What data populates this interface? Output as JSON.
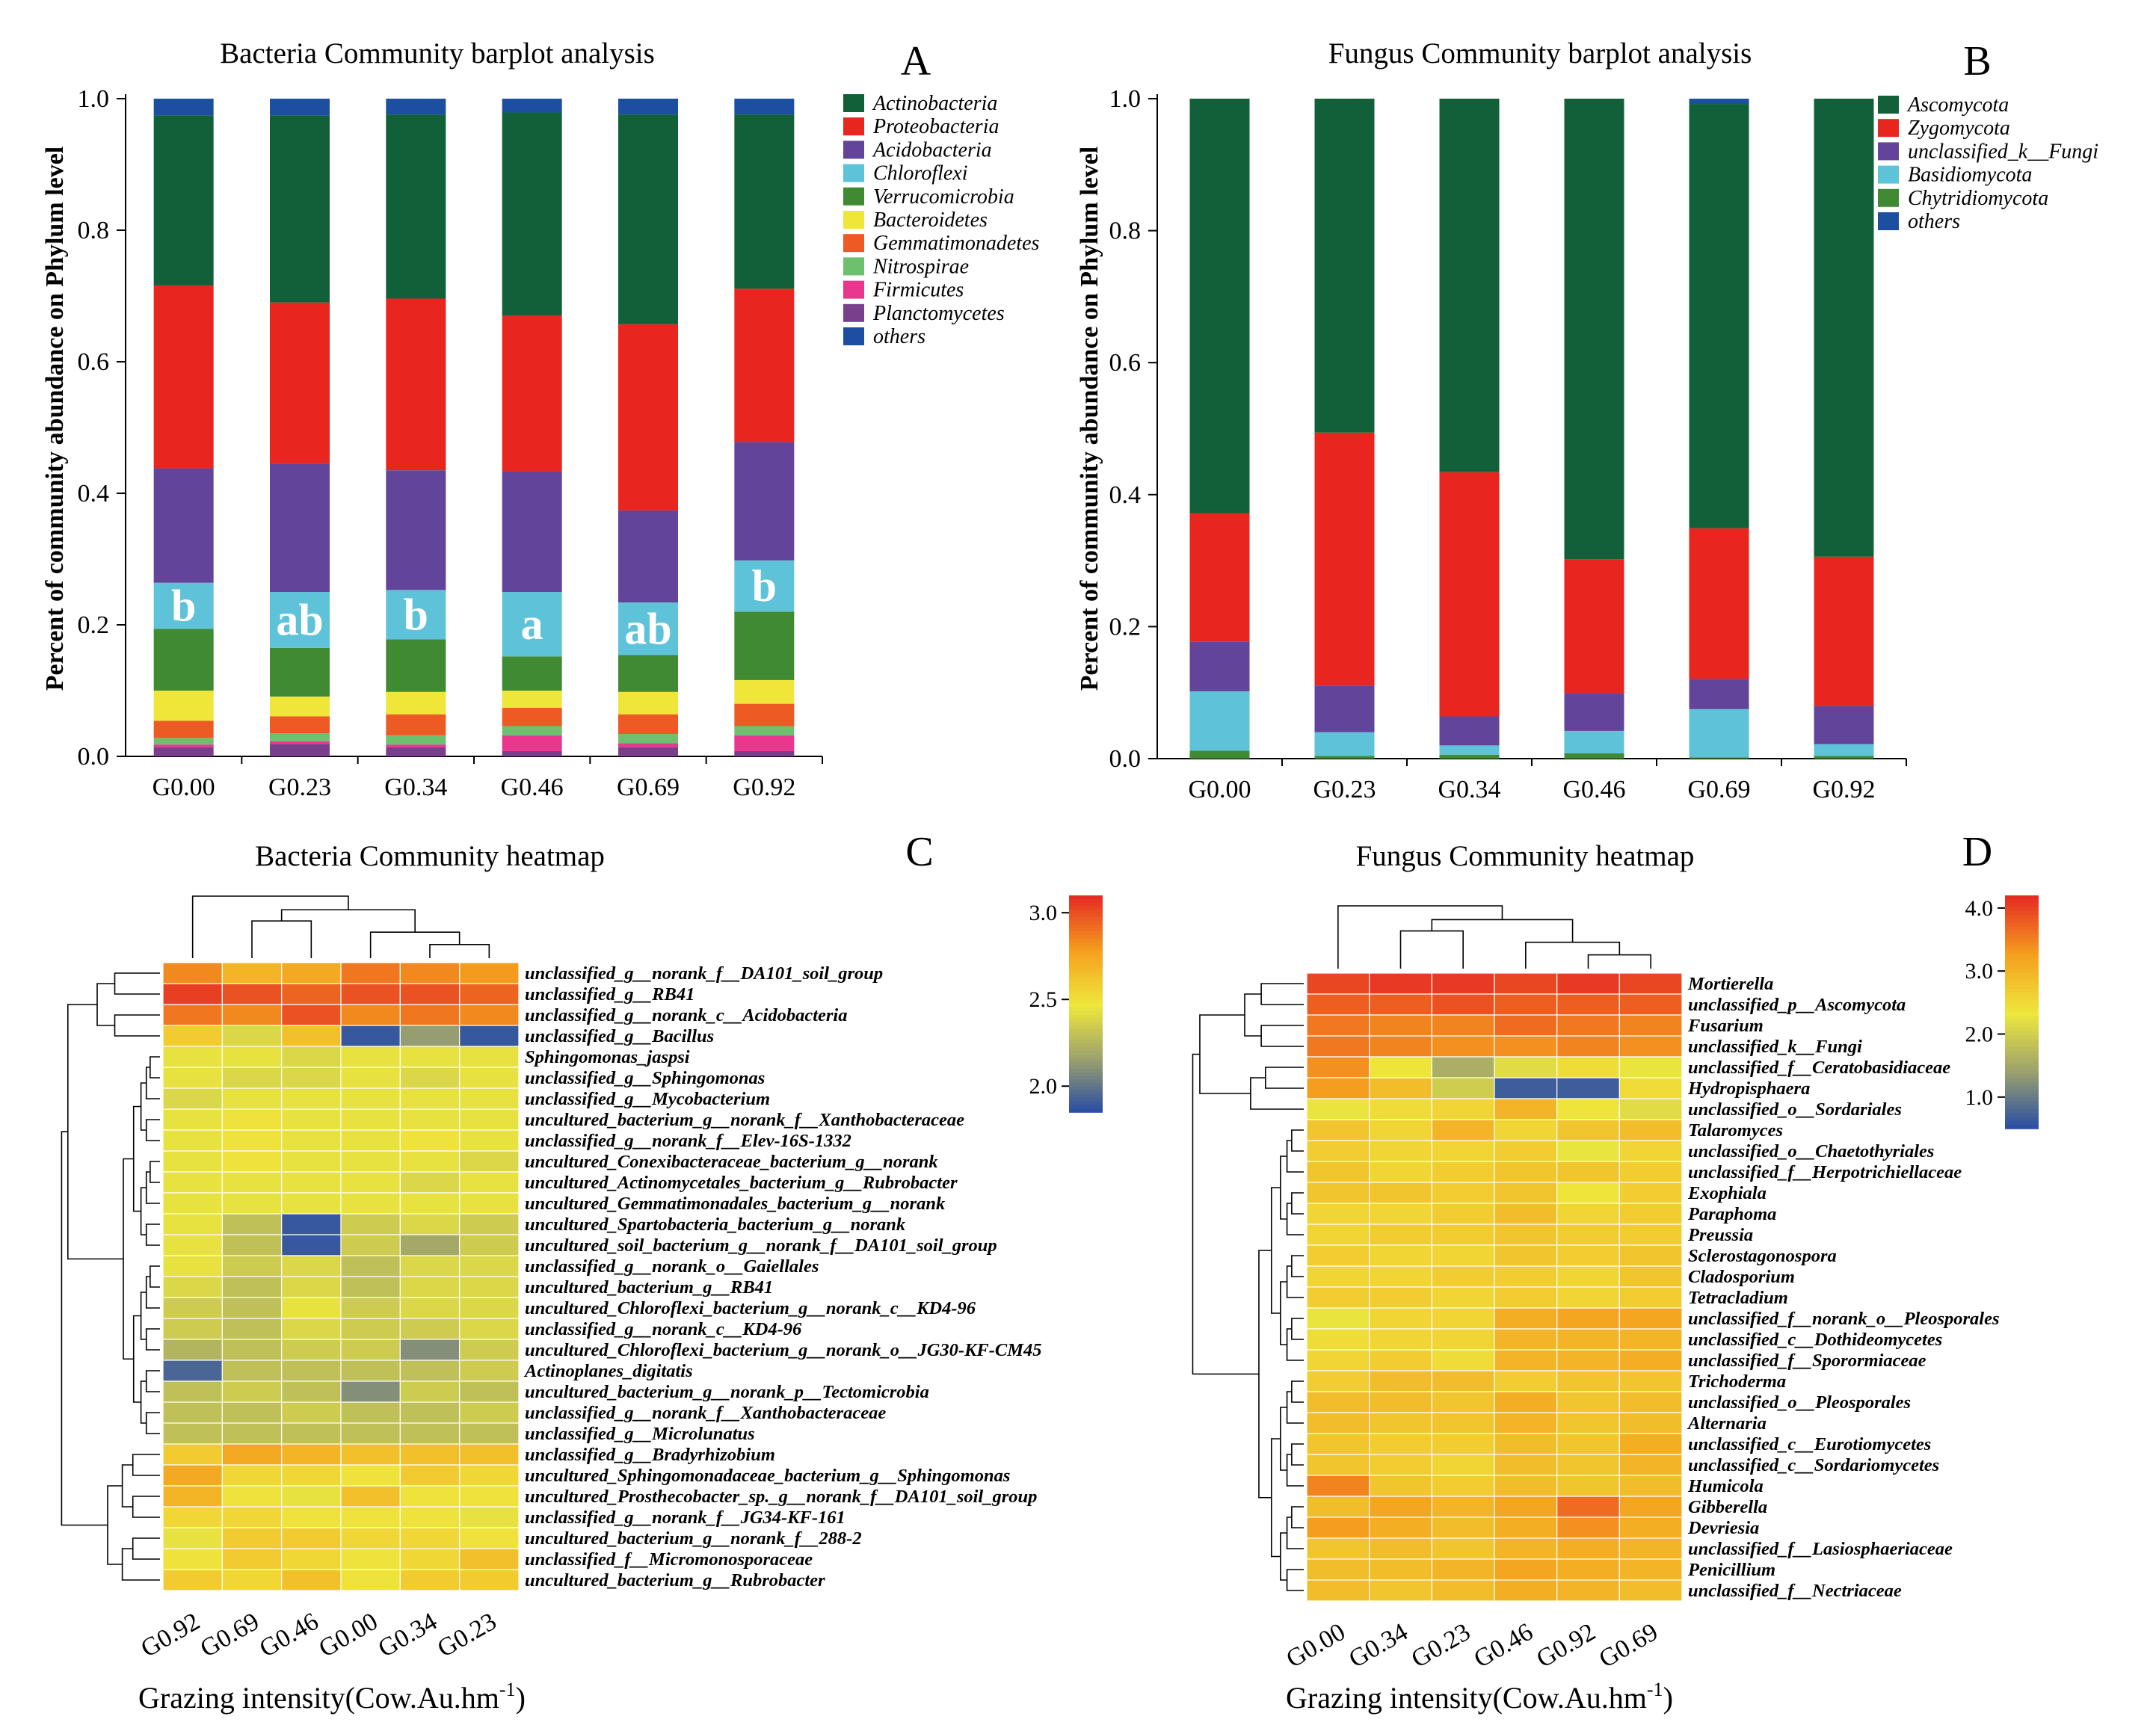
{
  "chart_data": [
    {
      "panel": "A",
      "type": "bar",
      "stacked": true,
      "title": "Bacteria Community barplot analysis",
      "ylabel": "Percent of community abundance on Phylum level",
      "xlabel": "",
      "ylim": [
        0,
        1.0
      ],
      "yticks": [
        "0.0",
        "0.2",
        "0.4",
        "0.6",
        "0.8",
        "1.0"
      ],
      "categories": [
        "G0.00",
        "G0.23",
        "G0.34",
        "G0.46",
        "G0.69",
        "G0.92"
      ],
      "significance_labels": [
        "b",
        "ab",
        "b",
        "a",
        "ab",
        "b"
      ],
      "series": [
        {
          "name": "Planctomycetes",
          "color": "#7a3f8c",
          "values": [
            0.014,
            0.019,
            0.014,
            0.008,
            0.014,
            0.008
          ]
        },
        {
          "name": "Firmicutes",
          "color": "#e8378d",
          "values": [
            0.004,
            0.004,
            0.004,
            0.024,
            0.006,
            0.024
          ]
        },
        {
          "name": "Nitrospirae",
          "color": "#6cc06e",
          "values": [
            0.01,
            0.012,
            0.014,
            0.014,
            0.014,
            0.014
          ]
        },
        {
          "name": "Gemmatimonadetes",
          "color": "#ee5a24",
          "values": [
            0.026,
            0.026,
            0.032,
            0.028,
            0.03,
            0.034
          ]
        },
        {
          "name": "Bacteroidetes",
          "color": "#f0e63a",
          "values": [
            0.046,
            0.03,
            0.034,
            0.026,
            0.034,
            0.036
          ]
        },
        {
          "name": "Verrucomicrobia",
          "color": "#3f8a33",
          "values": [
            0.094,
            0.074,
            0.08,
            0.052,
            0.056,
            0.104
          ]
        },
        {
          "name": "Chloroflexi",
          "color": "#5ec3d9",
          "values": [
            0.07,
            0.085,
            0.075,
            0.098,
            0.08,
            0.078
          ]
        },
        {
          "name": "Acidobacteria",
          "color": "#62449a",
          "values": [
            0.174,
            0.195,
            0.182,
            0.183,
            0.14,
            0.18
          ]
        },
        {
          "name": "Proteobacteria",
          "color": "#e8251e",
          "values": [
            0.278,
            0.245,
            0.261,
            0.237,
            0.283,
            0.233
          ]
        },
        {
          "name": "Actinobacteria",
          "color": "#12603a",
          "values": [
            0.258,
            0.284,
            0.28,
            0.309,
            0.319,
            0.265
          ]
        },
        {
          "name": "others",
          "color": "#1d4fa0",
          "values": [
            0.026,
            0.026,
            0.024,
            0.021,
            0.024,
            0.024
          ]
        }
      ],
      "legend": [
        "Actinobacteria",
        "Proteobacteria",
        "Acidobacteria",
        "Chloroflexi",
        "Verrucomicrobia",
        "Bacteroidetes",
        "Gemmatimonadetes",
        "Nitrospirae",
        "Firmicutes",
        "Planctomycetes",
        "others"
      ],
      "letter": "A"
    },
    {
      "panel": "B",
      "type": "bar",
      "stacked": true,
      "title": "Fungus Community barplot analysis",
      "ylabel": "Percent of community abundance on Phylum level",
      "xlabel": "",
      "ylim": [
        0,
        1.0
      ],
      "yticks": [
        "0.0",
        "0.2",
        "0.4",
        "0.6",
        "0.8",
        "1.0"
      ],
      "categories": [
        "G0.00",
        "G0.23",
        "G0.34",
        "G0.46",
        "G0.69",
        "G0.92"
      ],
      "series": [
        {
          "name": "Chytridiomycota",
          "color": "#3f8a33",
          "values": [
            0.012,
            0.004,
            0.006,
            0.008,
            0.002,
            0.004
          ]
        },
        {
          "name": "Basidiomycota",
          "color": "#5ec3d9",
          "values": [
            0.09,
            0.036,
            0.014,
            0.034,
            0.073,
            0.018
          ]
        },
        {
          "name": "unclassified_k__Fungi",
          "color": "#62449a",
          "values": [
            0.075,
            0.07,
            0.044,
            0.057,
            0.046,
            0.058
          ]
        },
        {
          "name": "Zygomycota",
          "color": "#e8251e",
          "values": [
            0.195,
            0.384,
            0.37,
            0.203,
            0.228,
            0.226
          ]
        },
        {
          "name": "Ascomycota",
          "color": "#12603a",
          "values": [
            0.628,
            0.506,
            0.566,
            0.698,
            0.643,
            0.694
          ]
        },
        {
          "name": "others",
          "color": "#1d4fa0",
          "values": [
            0.0,
            0.0,
            0.0,
            0.0,
            0.008,
            0.0
          ]
        }
      ],
      "legend": [
        "Ascomycota",
        "Zygomycota",
        "unclassified_k__Fungi",
        "Basidiomycota",
        "Chytridiomycota",
        "others"
      ],
      "letter": "B"
    },
    {
      "panel": "C",
      "type": "heatmap",
      "title": "Bacteria Community heatmap",
      "xlabel": "Grazing intensity(Cow.Au.hm",
      "xlabel_sup": "-1",
      "xlabel_end": ")",
      "columns": [
        "G0.92",
        "G0.69",
        "G0.46",
        "G0.00",
        "G0.34",
        "G0.23"
      ],
      "colorbar": {
        "min": 1.85,
        "max": 3.1,
        "ticks": [
          "2.0",
          "2.5",
          "3.0"
        ],
        "tick_values": [
          2.0,
          2.5,
          3.0
        ]
      },
      "rows": [
        {
          "name": "unclassified_g__norank_f__DA101_soil_group",
          "values": [
            2.85,
            2.7,
            2.75,
            2.9,
            2.85,
            2.8
          ]
        },
        {
          "name": "unclassified_g__RB41",
          "values": [
            3.05,
            3.0,
            2.95,
            3.0,
            3.0,
            2.95
          ]
        },
        {
          "name": "unclassified_g__norank_c__Acidobacteria",
          "values": [
            2.9,
            2.85,
            3.0,
            2.85,
            2.9,
            2.85
          ]
        },
        {
          "name": "unclassified_g__Bacillus",
          "values": [
            2.6,
            2.4,
            2.65,
            1.9,
            2.15,
            1.9
          ]
        },
        {
          "name": "Sphingomonas_jaspsi",
          "values": [
            2.45,
            2.45,
            2.4,
            2.45,
            2.45,
            2.45
          ]
        },
        {
          "name": "unclassified_g__Sphingomonas",
          "values": [
            2.45,
            2.4,
            2.4,
            2.45,
            2.4,
            2.45
          ]
        },
        {
          "name": "unclassified_g__Mycobacterium",
          "values": [
            2.4,
            2.45,
            2.45,
            2.45,
            2.45,
            2.45
          ]
        },
        {
          "name": "uncultured_bacterium_g__norank_f__Xanthobacteraceae",
          "values": [
            2.45,
            2.5,
            2.45,
            2.45,
            2.45,
            2.45
          ]
        },
        {
          "name": "unclassified_g__norank_f__Elev-16S-1332",
          "values": [
            2.45,
            2.5,
            2.45,
            2.45,
            2.5,
            2.45
          ]
        },
        {
          "name": "uncultured_Conexibacteraceae_bacterium_g__norank",
          "values": [
            2.45,
            2.5,
            2.45,
            2.45,
            2.45,
            2.4
          ]
        },
        {
          "name": "uncultured_Actinomycetales_bacterium_g__Rubrobacter",
          "values": [
            2.45,
            2.45,
            2.45,
            2.45,
            2.4,
            2.45
          ]
        },
        {
          "name": "uncultured_Gemmatimonadales_bacterium_g__norank",
          "values": [
            2.45,
            2.45,
            2.45,
            2.45,
            2.45,
            2.45
          ]
        },
        {
          "name": "uncultured_Spartobacteria_bacterium_g__norank",
          "values": [
            2.45,
            2.3,
            1.9,
            2.35,
            2.4,
            2.35
          ]
        },
        {
          "name": "uncultured_soil_bacterium_g__norank_f__DA101_soil_group",
          "values": [
            2.45,
            2.3,
            1.9,
            2.35,
            2.2,
            2.35
          ]
        },
        {
          "name": "unclassified_g__norank_o__Gaiellales",
          "values": [
            2.45,
            2.35,
            2.4,
            2.3,
            2.4,
            2.4
          ]
        },
        {
          "name": "uncultured_bacterium_g__RB41",
          "values": [
            2.4,
            2.3,
            2.4,
            2.3,
            2.4,
            2.4
          ]
        },
        {
          "name": "uncultured_Chloroflexi_bacterium_g__norank_c__KD4-96",
          "values": [
            2.35,
            2.3,
            2.45,
            2.35,
            2.4,
            2.4
          ]
        },
        {
          "name": "unclassified_g__norank_c__KD4-96",
          "values": [
            2.35,
            2.3,
            2.4,
            2.35,
            2.35,
            2.4
          ]
        },
        {
          "name": "uncultured_Chloroflexi_bacterium_g__norank_o__JG30-KF-CM45",
          "values": [
            2.25,
            2.3,
            2.35,
            2.35,
            2.1,
            2.35
          ]
        },
        {
          "name": "Actinoplanes_digitatis",
          "values": [
            1.95,
            2.3,
            2.3,
            2.3,
            2.3,
            2.35
          ]
        },
        {
          "name": "uncultured_bacterium_g__norank_p__Tectomicrobia",
          "values": [
            2.3,
            2.35,
            2.3,
            2.1,
            2.35,
            2.3
          ]
        },
        {
          "name": "unclassified_g__norank_f__Xanthobacteraceae",
          "values": [
            2.3,
            2.3,
            2.35,
            2.3,
            2.3,
            2.35
          ]
        },
        {
          "name": "unclassified_g__Microlunatus",
          "values": [
            2.3,
            2.3,
            2.3,
            2.3,
            2.3,
            2.3
          ]
        },
        {
          "name": "unclassified_g__Bradyrhizobium",
          "values": [
            2.6,
            2.75,
            2.7,
            2.65,
            2.65,
            2.65
          ]
        },
        {
          "name": "uncultured_Sphingomonadaceae_bacterium_g__Sphingomonas",
          "values": [
            2.75,
            2.55,
            2.55,
            2.5,
            2.6,
            2.55
          ]
        },
        {
          "name": "uncultured_Prosthecobacter_sp._g__norank_f__DA101_soil_group",
          "values": [
            2.7,
            2.5,
            2.45,
            2.65,
            2.5,
            2.5
          ]
        },
        {
          "name": "unclassified_g__norank_f__JG34-KF-161",
          "values": [
            2.55,
            2.55,
            2.5,
            2.5,
            2.5,
            2.45
          ]
        },
        {
          "name": "uncultured_bacterium_g__norank_f__288-2",
          "values": [
            2.45,
            2.6,
            2.6,
            2.55,
            2.55,
            2.5
          ]
        },
        {
          "name": "unclassified_f__Micromonosporaceae",
          "values": [
            2.5,
            2.6,
            2.55,
            2.5,
            2.55,
            2.65
          ]
        },
        {
          "name": "uncultured_bacterium_g__Rubrobacter",
          "values": [
            2.6,
            2.55,
            2.65,
            2.5,
            2.6,
            2.6
          ]
        }
      ],
      "letter": "C"
    },
    {
      "panel": "D",
      "type": "heatmap",
      "title": "Fungus Community heatmap",
      "xlabel": "Grazing intensity(Cow.Au.hm",
      "xlabel_sup": "-1",
      "xlabel_end": ")",
      "columns": [
        "G0.00",
        "G0.34",
        "G0.23",
        "G0.46",
        "G0.92",
        "G0.69"
      ],
      "colorbar": {
        "min": 0.5,
        "max": 4.2,
        "ticks": [
          "1.0",
          "2.0",
          "3.0",
          "4.0"
        ],
        "tick_values": [
          1.0,
          2.0,
          3.0,
          4.0
        ]
      },
      "rows": [
        {
          "name": "Mortierella",
          "values": [
            4.0,
            4.1,
            4.1,
            4.0,
            4.1,
            4.0
          ]
        },
        {
          "name": "unclassified_p__Ascomycota",
          "values": [
            3.8,
            3.8,
            3.9,
            3.8,
            3.8,
            3.8
          ]
        },
        {
          "name": "Fusarium",
          "values": [
            3.6,
            3.5,
            3.5,
            3.7,
            3.6,
            3.5
          ]
        },
        {
          "name": "unclassified_k__Fungi",
          "values": [
            3.6,
            3.5,
            3.4,
            3.4,
            3.5,
            3.4
          ]
        },
        {
          "name": "unclassified_f__Ceratobasidiaceae",
          "values": [
            3.4,
            2.4,
            1.6,
            2.2,
            2.5,
            2.3
          ]
        },
        {
          "name": "Hydropisphaera",
          "values": [
            3.3,
            2.9,
            2.0,
            0.7,
            0.7,
            2.5
          ]
        },
        {
          "name": "unclassified_o__Sordariales",
          "values": [
            2.3,
            2.5,
            2.6,
            3.0,
            2.4,
            2.2
          ]
        },
        {
          "name": "Talaromyces",
          "values": [
            2.8,
            2.6,
            3.0,
            2.6,
            2.8,
            2.9
          ]
        },
        {
          "name": "unclassified_o__Chaetothyriales",
          "values": [
            2.7,
            2.6,
            2.6,
            2.7,
            2.3,
            2.6
          ]
        },
        {
          "name": "unclassified_f__Herpotrichiellaceae",
          "values": [
            2.8,
            2.6,
            2.7,
            2.8,
            2.8,
            2.7
          ]
        },
        {
          "name": "Exophiala",
          "values": [
            2.8,
            2.8,
            2.7,
            2.8,
            2.4,
            2.7
          ]
        },
        {
          "name": "Paraphoma",
          "values": [
            2.6,
            2.6,
            2.7,
            2.9,
            2.6,
            2.7
          ]
        },
        {
          "name": "Preussia",
          "values": [
            2.6,
            2.7,
            2.7,
            2.8,
            2.7,
            2.7
          ]
        },
        {
          "name": "Sclerostagonospora",
          "values": [
            2.7,
            2.6,
            2.6,
            2.8,
            2.7,
            2.8
          ]
        },
        {
          "name": "Cladosporium",
          "values": [
            2.6,
            2.6,
            2.7,
            2.7,
            2.6,
            2.8
          ]
        },
        {
          "name": "Tetracladium",
          "values": [
            2.7,
            2.7,
            2.6,
            2.7,
            2.6,
            2.7
          ]
        },
        {
          "name": "unclassified_f__norank_o__Pleosporales",
          "values": [
            2.3,
            2.6,
            2.6,
            3.1,
            3.2,
            3.2
          ]
        },
        {
          "name": "unclassified_c__Dothideomycetes",
          "values": [
            2.5,
            2.6,
            2.6,
            3.0,
            3.0,
            3.0
          ]
        },
        {
          "name": "unclassified_f__Sporormiaceae",
          "values": [
            2.6,
            2.7,
            2.5,
            3.0,
            3.0,
            3.1
          ]
        },
        {
          "name": "Trichoderma",
          "values": [
            2.7,
            2.9,
            2.9,
            2.7,
            2.8,
            2.8
          ]
        },
        {
          "name": "unclassified_o__Pleosporales",
          "values": [
            2.9,
            2.9,
            2.8,
            3.1,
            2.8,
            2.9
          ]
        },
        {
          "name": "Alternaria",
          "values": [
            2.9,
            2.8,
            2.8,
            3.0,
            2.8,
            2.9
          ]
        },
        {
          "name": "unclassified_c__Eurotiomycetes",
          "values": [
            2.8,
            2.7,
            2.7,
            2.9,
            2.8,
            3.1
          ]
        },
        {
          "name": "unclassified_c__Sordariomycetes",
          "values": [
            2.8,
            2.7,
            2.6,
            2.9,
            2.8,
            3.0
          ]
        },
        {
          "name": "Humicola",
          "values": [
            3.5,
            2.8,
            2.7,
            2.9,
            2.8,
            2.9
          ]
        },
        {
          "name": "Gibberella",
          "values": [
            2.9,
            3.2,
            3.0,
            3.2,
            3.7,
            3.2
          ]
        },
        {
          "name": "Devriesia",
          "values": [
            3.3,
            3.1,
            2.9,
            3.1,
            3.4,
            3.1
          ]
        },
        {
          "name": "unclassified_f__Lasiosphaeriaceae",
          "values": [
            2.8,
            2.9,
            2.8,
            3.0,
            3.1,
            3.0
          ]
        },
        {
          "name": "Penicillium",
          "values": [
            2.9,
            2.9,
            3.0,
            3.2,
            3.1,
            3.0
          ]
        },
        {
          "name": "unclassified_f__Nectriaceae",
          "values": [
            2.9,
            2.8,
            2.9,
            3.1,
            3.0,
            2.9
          ]
        }
      ],
      "letter": "D"
    }
  ]
}
